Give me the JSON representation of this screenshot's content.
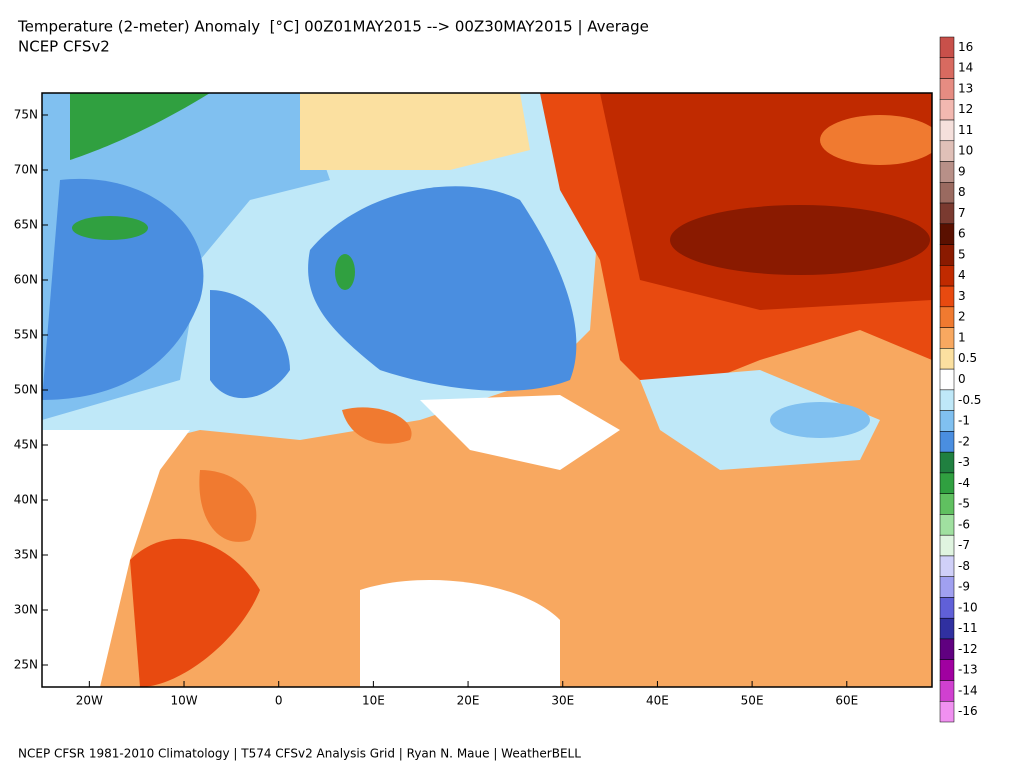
{
  "chart_data": {
    "type": "map",
    "title": "Temperature (2-meter) Anomaly  [°C] 00Z01MAY2015 --> 00Z30MAY2015 | Average",
    "subtitle": "NCEP CFSv2",
    "footer": "NCEP CFSR 1981-2010 Climatology | T574 CFSv2 Analysis Grid | Ryan N. Maue | WeatherBELL",
    "xlim": [
      -25,
      69
    ],
    "ylim": [
      23,
      77
    ],
    "xticks": [
      {
        "value": -20,
        "label": "20W"
      },
      {
        "value": -10,
        "label": "10W"
      },
      0,
      {
        "value": 10,
        "label": "10E"
      },
      {
        "value": 20,
        "label": "20E"
      },
      {
        "value": 30,
        "label": "30E"
      },
      {
        "value": 40,
        "label": "40E"
      },
      {
        "value": 50,
        "label": "50E"
      },
      {
        "value": 60,
        "label": "60E"
      }
    ],
    "yticks": [
      {
        "value": 25,
        "label": "25N"
      },
      {
        "value": 30,
        "label": "30N"
      },
      {
        "value": 35,
        "label": "35N"
      },
      {
        "value": 40,
        "label": "40N"
      },
      {
        "value": 45,
        "label": "45N"
      },
      {
        "value": 50,
        "label": "50N"
      },
      {
        "value": 55,
        "label": "55N"
      },
      {
        "value": 60,
        "label": "60N"
      },
      {
        "value": 65,
        "label": "65N"
      },
      {
        "value": 70,
        "label": "70N"
      },
      {
        "value": 75,
        "label": "75N"
      }
    ],
    "colorbar": {
      "levels": [
        16,
        14,
        13,
        12,
        11,
        10,
        9,
        8,
        7,
        6,
        5,
        4,
        3,
        2,
        1,
        0.5,
        0,
        -0.5,
        -1,
        -2,
        -3,
        -4,
        -5,
        -6,
        -7,
        -8,
        -9,
        -10,
        -11,
        -12,
        -13,
        -14,
        -16
      ],
      "colors": [
        "#c8504a",
        "#d86a60",
        "#e68c82",
        "#f2b8b0",
        "#f5e0dc",
        "#e0c0b8",
        "#b89088",
        "#9a6a60",
        "#7a3a30",
        "#5a1000",
        "#8a1a00",
        "#c02a00",
        "#e84a10",
        "#f07a30",
        "#f8a860",
        "#fbe0a0",
        "#ffffff",
        "#bfe8f8",
        "#80c0f0",
        "#4a8ee0",
        "#208040",
        "#30a040",
        "#60c060",
        "#a0e0a0",
        "#e0f4e0",
        "#d0d0f8",
        "#a0a0f0",
        "#6060d8",
        "#3030a0",
        "#600080",
        "#a000a0",
        "#d040d0",
        "#f090f0"
      ]
    }
  }
}
